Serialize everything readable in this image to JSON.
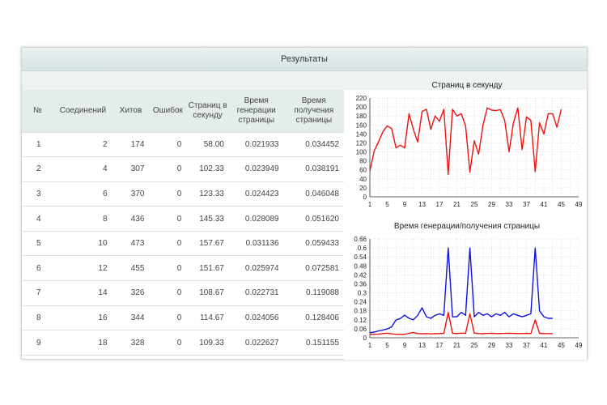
{
  "header": {
    "title": "Результаты"
  },
  "table": {
    "columns": [
      {
        "label": "№"
      },
      {
        "label": "Соединений"
      },
      {
        "label": "Хитов"
      },
      {
        "label": "Ошибок"
      },
      {
        "label": "Страниц в секунду"
      },
      {
        "label": "Время генерации страницы"
      },
      {
        "label": "Время получения страницы"
      }
    ],
    "rows": [
      [
        "1",
        "2",
        "174",
        "0",
        "58.00",
        "0.021933",
        "0.034452"
      ],
      [
        "2",
        "4",
        "307",
        "0",
        "102.33",
        "0.023949",
        "0.038191"
      ],
      [
        "3",
        "6",
        "370",
        "0",
        "123.33",
        "0.024423",
        "0.046048"
      ],
      [
        "4",
        "8",
        "436",
        "0",
        "145.33",
        "0.028089",
        "0.051620"
      ],
      [
        "5",
        "10",
        "473",
        "0",
        "157.67",
        "0.031136",
        "0.059433"
      ],
      [
        "6",
        "12",
        "455",
        "0",
        "151.67",
        "0.025974",
        "0.072581"
      ],
      [
        "7",
        "14",
        "326",
        "0",
        "108.67",
        "0.022731",
        "0.119088"
      ],
      [
        "8",
        "16",
        "344",
        "0",
        "114.67",
        "0.024056",
        "0.128406"
      ],
      [
        "9",
        "18",
        "328",
        "0",
        "109.33",
        "0.022627",
        "0.151155"
      ]
    ]
  },
  "chart_data": [
    {
      "type": "line",
      "title": "Страниц в секунду",
      "xlim": [
        1,
        49
      ],
      "xticks": [
        1,
        5,
        9,
        13,
        17,
        21,
        25,
        29,
        33,
        37,
        41,
        45,
        49
      ],
      "ylim": [
        0,
        220
      ],
      "yticks": [
        0,
        20,
        40,
        60,
        80,
        100,
        120,
        140,
        160,
        180,
        200,
        220
      ],
      "grid": true,
      "series": [
        {
          "color": "#ee1111",
          "x": [
            1,
            2,
            3,
            4,
            5,
            6,
            7,
            8,
            9,
            10,
            11,
            12,
            13,
            14,
            15,
            16,
            17,
            18,
            19,
            20,
            21,
            22,
            23,
            24,
            25,
            26,
            27,
            28,
            29,
            30,
            31,
            32,
            33,
            34,
            35,
            36,
            37,
            38,
            39,
            40,
            41,
            42,
            43,
            44,
            45
          ],
          "y": [
            58,
            102,
            123,
            145,
            158,
            152,
            109,
            115,
            109,
            185,
            150,
            122,
            190,
            195,
            150,
            180,
            168,
            195,
            50,
            195,
            180,
            185,
            158,
            55,
            125,
            95,
            160,
            198,
            193,
            192,
            194,
            170,
            100,
            165,
            198,
            105,
            178,
            170,
            56,
            165,
            140,
            185,
            185,
            155,
            195
          ]
        }
      ]
    },
    {
      "type": "line",
      "title": "Время генерации/получения страницы",
      "xlim": [
        1,
        49
      ],
      "xticks": [
        1,
        5,
        9,
        13,
        17,
        21,
        25,
        29,
        33,
        37,
        41,
        45,
        49
      ],
      "ylim": [
        0,
        0.66
      ],
      "yticks": [
        "0",
        "0.06",
        "0.12",
        "0.18",
        "0.24",
        "0.3",
        "0.36",
        "0.42",
        "0.48",
        "0.54",
        "0.6",
        "0.66"
      ],
      "grid": true,
      "series": [
        {
          "color": "#ee1111",
          "x": [
            1,
            2,
            3,
            4,
            5,
            6,
            7,
            8,
            9,
            10,
            11,
            12,
            13,
            14,
            15,
            16,
            17,
            18,
            19,
            20,
            21,
            22,
            23,
            24,
            25,
            26,
            27,
            28,
            29,
            30,
            31,
            32,
            33,
            34,
            35,
            36,
            37,
            38,
            39,
            40,
            41,
            42,
            43
          ],
          "y": [
            0.022,
            0.024,
            0.024,
            0.028,
            0.031,
            0.026,
            0.023,
            0.024,
            0.023,
            0.03,
            0.035,
            0.028,
            0.027,
            0.028,
            0.026,
            0.027,
            0.028,
            0.029,
            0.17,
            0.03,
            0.028,
            0.031,
            0.03,
            0.16,
            0.031,
            0.028,
            0.027,
            0.029,
            0.03,
            0.028,
            0.028,
            0.029,
            0.03,
            0.029,
            0.028,
            0.028,
            0.03,
            0.028,
            0.12,
            0.03,
            0.028,
            0.028,
            0.028
          ]
        },
        {
          "color": "#1111dd",
          "x": [
            1,
            2,
            3,
            4,
            5,
            6,
            7,
            8,
            9,
            10,
            11,
            12,
            13,
            14,
            15,
            16,
            17,
            18,
            19,
            20,
            21,
            22,
            23,
            24,
            25,
            26,
            27,
            28,
            29,
            30,
            31,
            32,
            33,
            34,
            35,
            36,
            37,
            38,
            39,
            40,
            41,
            42,
            43
          ],
          "y": [
            0.034,
            0.038,
            0.046,
            0.052,
            0.059,
            0.073,
            0.119,
            0.128,
            0.151,
            0.13,
            0.12,
            0.15,
            0.2,
            0.14,
            0.13,
            0.15,
            0.16,
            0.15,
            0.6,
            0.14,
            0.14,
            0.17,
            0.15,
            0.6,
            0.14,
            0.17,
            0.15,
            0.16,
            0.14,
            0.16,
            0.15,
            0.17,
            0.14,
            0.16,
            0.15,
            0.14,
            0.15,
            0.16,
            0.6,
            0.18,
            0.14,
            0.13,
            0.13
          ]
        }
      ]
    }
  ]
}
